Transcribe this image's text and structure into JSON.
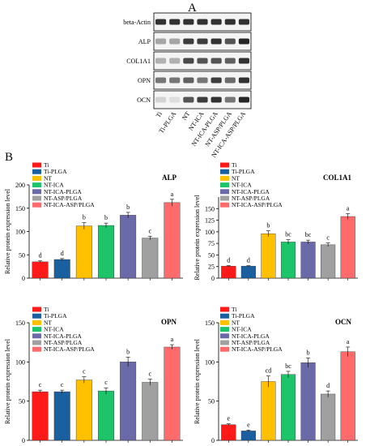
{
  "panel_a": {
    "label": "A",
    "bands": [
      {
        "name": "beta-Actin",
        "intensity": [
          0.85,
          0.85,
          0.85,
          0.85,
          0.85,
          0.85,
          0.85
        ]
      },
      {
        "name": "ALP",
        "intensity": [
          0.35,
          0.35,
          0.8,
          0.8,
          0.85,
          0.7,
          0.9
        ]
      },
      {
        "name": "COL1A1",
        "intensity": [
          0.3,
          0.3,
          0.75,
          0.7,
          0.7,
          0.65,
          0.85
        ]
      },
      {
        "name": "OPN",
        "intensity": [
          0.55,
          0.55,
          0.65,
          0.55,
          0.8,
          0.6,
          0.85
        ]
      },
      {
        "name": "OCN",
        "intensity": [
          0.15,
          0.1,
          0.7,
          0.8,
          0.85,
          0.55,
          0.9
        ]
      }
    ],
    "lanes": [
      "Ti",
      "Ti-PLGA",
      "NT",
      "NT-ICA",
      "NT-ICA-PLGA",
      "NT-ASP/PLGA",
      "NT-ICA-ASP/PLGA"
    ]
  },
  "panel_b": {
    "label": "B",
    "legend": [
      "Ti",
      "Ti-PLGA",
      "NT",
      "NT-ICA",
      "NT-ICA-PLGA",
      "NT-ASP/PLGA",
      "NT-ICA-ASP/PLGA"
    ],
    "colors": [
      "#ff1a1a",
      "#1a5fa0",
      "#ffc000",
      "#1ec46a",
      "#6a6aa8",
      "#a0a0a0",
      "#ff6b6b"
    ]
  },
  "chart_data": [
    {
      "type": "bar",
      "title": "ALP",
      "ylabel": "Relative protein expression level",
      "categories": [
        "Ti",
        "Ti-PLGA",
        "NT",
        "NT-ICA",
        "NT-ICA-PLGA",
        "NT-ASP/PLGA",
        "NT-ICA-ASP/PLGA"
      ],
      "values": [
        35,
        40,
        112,
        113,
        135,
        86,
        162
      ],
      "errors": [
        2,
        2,
        7,
        5,
        6,
        4,
        7
      ],
      "sig": [
        "d",
        "d",
        "b",
        "b",
        "b",
        "c",
        "a"
      ],
      "ylim": [
        0,
        200
      ],
      "yticks": [
        0,
        50,
        100,
        150,
        200
      ]
    },
    {
      "type": "bar",
      "title": "COL1A1",
      "ylabel": "Relative protein expression level",
      "categories": [
        "Ti",
        "Ti-PLGA",
        "NT",
        "NT-ICA",
        "NT-ICA-PLGA",
        "NT-ASP/PLGA",
        "NT-ICA-ASP/PLGA"
      ],
      "values": [
        26,
        26,
        96,
        78,
        78,
        72,
        133
      ],
      "errors": [
        1,
        1,
        6,
        5,
        4,
        4,
        6
      ],
      "sig": [
        "d",
        "d",
        "b",
        "bc",
        "bc",
        "c",
        "a"
      ],
      "ylim": [
        0,
        175
      ],
      "yticks": [
        0,
        25,
        50,
        75,
        100,
        125,
        150
      ]
    },
    {
      "type": "bar",
      "title": "OPN",
      "ylabel": "Relative protein expression level",
      "categories": [
        "Ti",
        "Ti-PLGA",
        "NT",
        "NT-ICA",
        "NT-ICA-PLGA",
        "NT-ASP/PLGA",
        "NT-ICA-ASP/PLGA"
      ],
      "values": [
        62,
        62,
        77,
        63,
        100,
        74,
        119
      ],
      "errors": [
        2,
        2,
        4,
        4,
        6,
        4,
        3
      ],
      "sig": [
        "c",
        "c",
        "c",
        "c",
        "b",
        "c",
        "a"
      ],
      "ylim": [
        0,
        150
      ],
      "yticks": [
        0,
        50,
        100,
        150
      ]
    },
    {
      "type": "bar",
      "title": "OCN",
      "ylabel": "Relative protein expression level",
      "categories": [
        "Ti",
        "Ti-PLGA",
        "NT",
        "NT-ICA",
        "NT-ICA-PLGA",
        "NT-ASP/PLGA",
        "NT-ICA-ASP/PLGA"
      ],
      "values": [
        20,
        12,
        75,
        84,
        99,
        59,
        113
      ],
      "errors": [
        1,
        1,
        7,
        4,
        6,
        4,
        6
      ],
      "sig": [
        "e",
        "e",
        "cd",
        "bc",
        "b",
        "d",
        "a"
      ],
      "ylim": [
        0,
        150
      ],
      "yticks": [
        0,
        50,
        100,
        150
      ]
    }
  ]
}
